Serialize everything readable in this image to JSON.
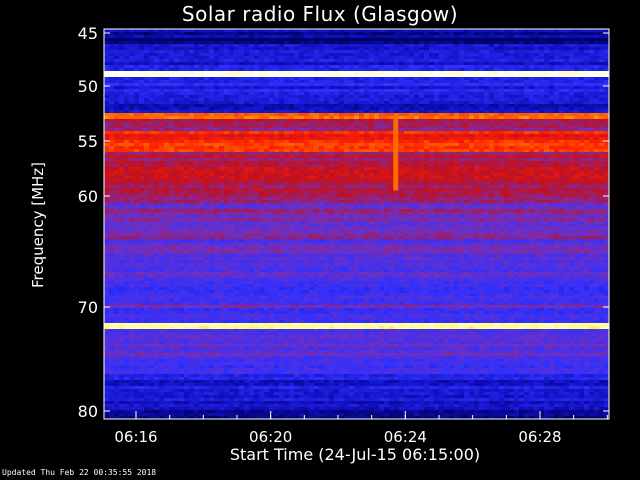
{
  "chart_data": {
    "type": "heatmap",
    "title": "Solar radio Flux (Glasgow)",
    "ylabel": "Frequency [MHz]",
    "xlabel": "Start Time (24-Jul-15 06:15:00)",
    "y_ticks": [
      45,
      50,
      55,
      60,
      70,
      80
    ],
    "y_range": [
      45,
      80
    ],
    "x_ticks": [
      "06:16",
      "06:20",
      "06:24",
      "06:28"
    ],
    "x_tick_minutes": [
      1,
      5,
      9,
      13
    ],
    "x_range_minutes": [
      0,
      15
    ],
    "colormap": [
      "#000060",
      "#1010c0",
      "#3030ff",
      "#7030c0",
      "#c01020",
      "#ff2000",
      "#ff8000",
      "#ffff80",
      "#ffffff"
    ],
    "bands": [
      {
        "from": 45.0,
        "to": 46.0,
        "level": 0.05
      },
      {
        "from": 46.0,
        "to": 48.5,
        "level": 0.18
      },
      {
        "from": 48.5,
        "to": 49.1,
        "level": 0.95
      },
      {
        "from": 49.1,
        "to": 50.5,
        "level": 0.2
      },
      {
        "from": 50.5,
        "to": 52.5,
        "level": 0.15
      },
      {
        "from": 52.5,
        "to": 53.0,
        "level": 0.75
      },
      {
        "from": 53.0,
        "to": 54.0,
        "level": 0.45
      },
      {
        "from": 54.0,
        "to": 56.0,
        "level": 0.62
      },
      {
        "from": 56.0,
        "to": 60.5,
        "level": 0.48
      },
      {
        "from": 60.5,
        "to": 64.0,
        "level": 0.38
      },
      {
        "from": 64.0,
        "to": 66.5,
        "level": 0.34
      },
      {
        "from": 66.5,
        "to": 71.5,
        "level": 0.3
      },
      {
        "from": 71.5,
        "to": 72.2,
        "level": 0.9
      },
      {
        "from": 72.2,
        "to": 75.0,
        "level": 0.32
      },
      {
        "from": 75.0,
        "to": 77.0,
        "level": 0.25
      },
      {
        "from": 77.0,
        "to": 80.0,
        "level": 0.18
      }
    ],
    "burst": {
      "minute": 8.7,
      "from": 53.0,
      "to": 59.5
    }
  },
  "footer": {
    "updated": "Updated Thu Feb 22 00:35:55 2018"
  }
}
